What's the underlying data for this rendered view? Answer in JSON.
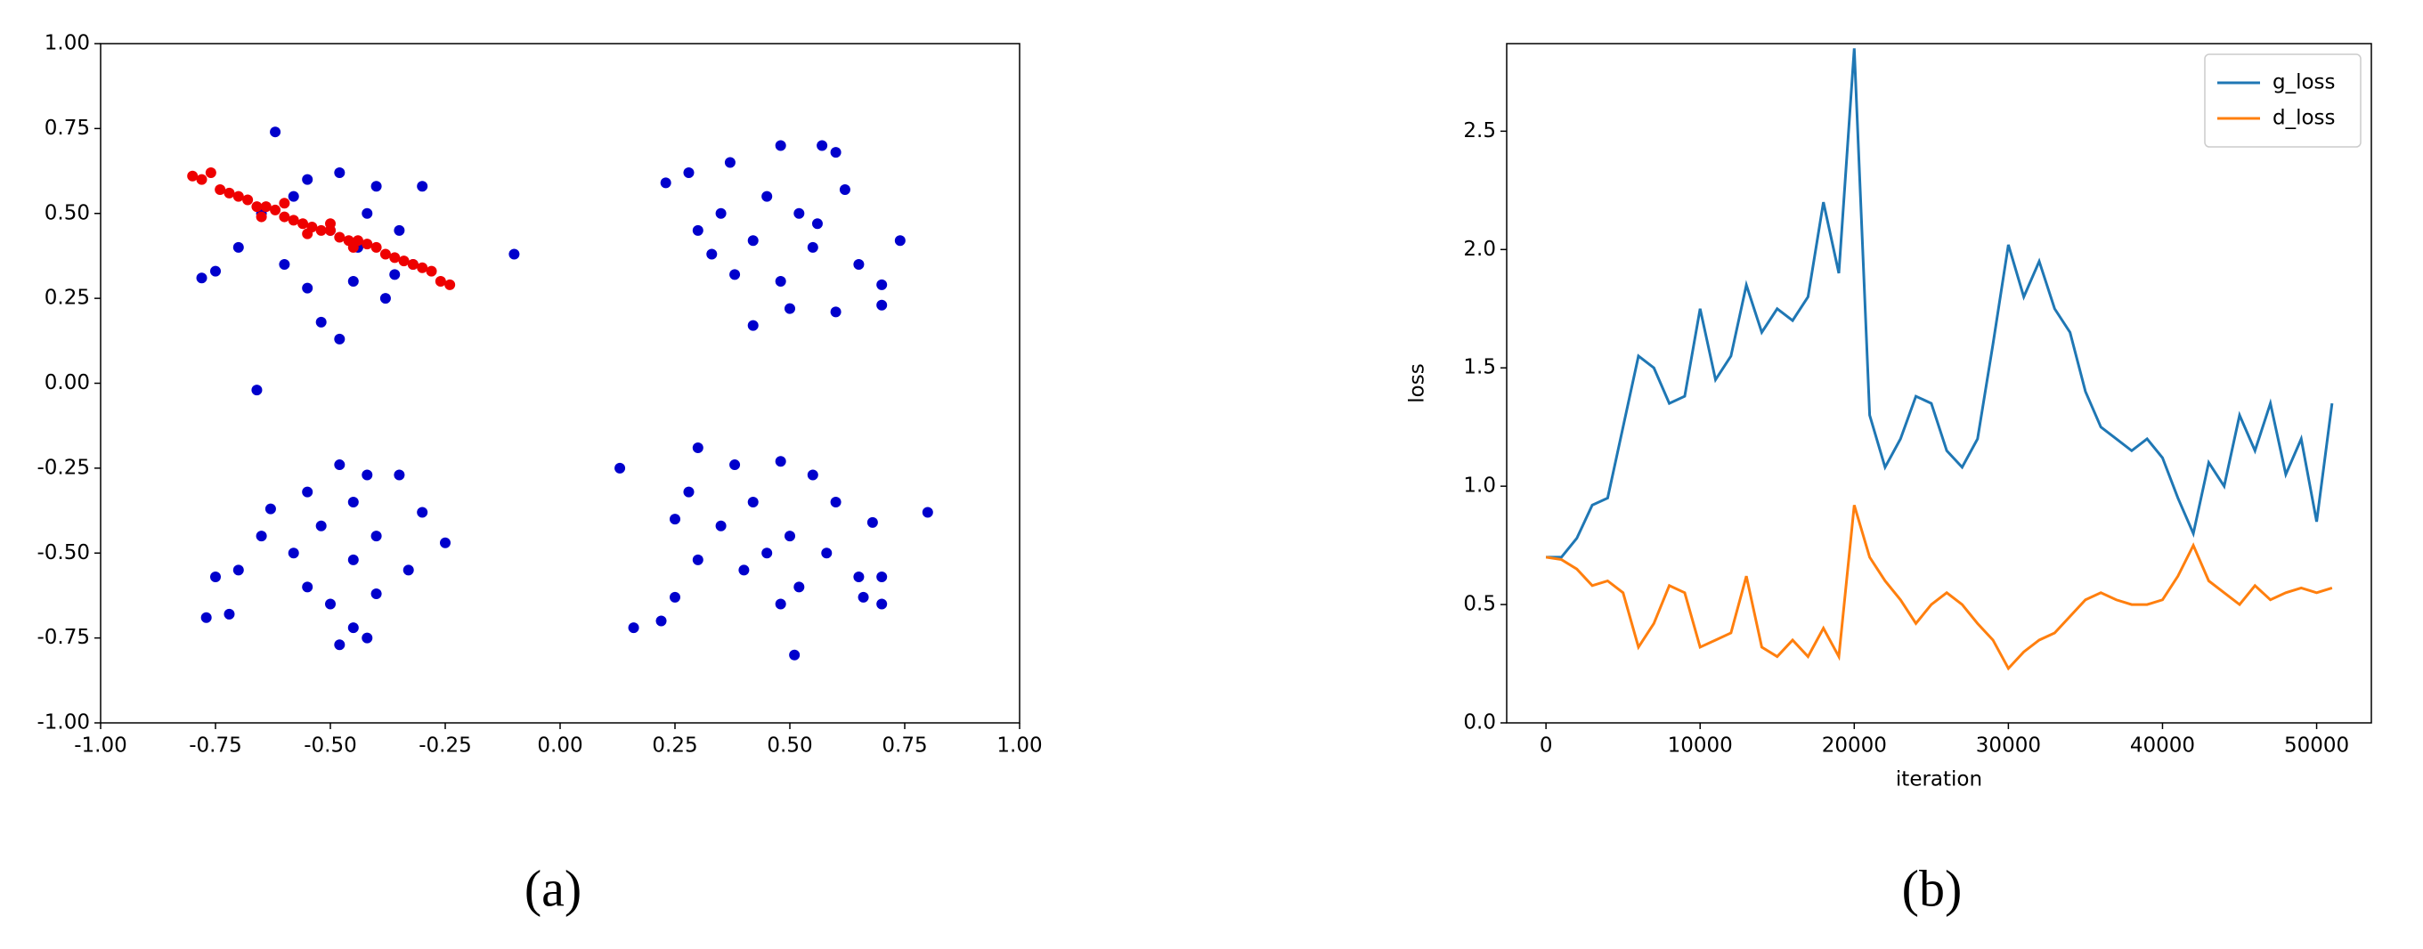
{
  "chart_data": [
    {
      "type": "scatter",
      "panel_label": "(a)",
      "xlim": [
        -1,
        1
      ],
      "ylim": [
        -1,
        1
      ],
      "xticks": [
        {
          "value": -1,
          "label": "-1.00"
        },
        {
          "value": -0.75,
          "label": "-0.75"
        },
        {
          "value": -0.5,
          "label": "-0.50"
        },
        {
          "value": -0.25,
          "label": "-0.25"
        },
        {
          "value": 0,
          "label": "0.00"
        },
        {
          "value": 0.25,
          "label": "0.25"
        },
        {
          "value": 0.5,
          "label": "0.50"
        },
        {
          "value": 0.75,
          "label": "0.75"
        },
        {
          "value": 1,
          "label": "1.00"
        }
      ],
      "yticks": [
        {
          "value": -1,
          "label": "-1.00"
        },
        {
          "value": -0.75,
          "label": "-0.75"
        },
        {
          "value": -0.5,
          "label": "-0.50"
        },
        {
          "value": -0.25,
          "label": "-0.25"
        },
        {
          "value": 0,
          "label": "0.00"
        },
        {
          "value": 0.25,
          "label": "0.25"
        },
        {
          "value": 0.5,
          "label": "0.50"
        },
        {
          "value": 0.75,
          "label": "0.75"
        },
        {
          "value": 1,
          "label": "1.00"
        }
      ],
      "series": [
        {
          "color": "#0000cc",
          "x": [
            -0.62,
            -0.55,
            -0.48,
            -0.4,
            -0.3,
            -0.65,
            -0.5,
            -0.42,
            -0.35,
            -0.7,
            -0.6,
            -0.45,
            -0.38,
            -0.55,
            -0.75,
            -0.78,
            -0.52,
            -0.48,
            -0.1,
            -0.66,
            -0.32,
            -0.58,
            -0.44,
            -0.36,
            0.28,
            0.37,
            0.48,
            0.57,
            0.6,
            0.23,
            0.45,
            0.52,
            0.35,
            0.62,
            0.3,
            0.42,
            0.55,
            0.74,
            0.65,
            0.38,
            0.48,
            0.7,
            0.5,
            0.42,
            0.6,
            0.7,
            0.33,
            0.56,
            -0.48,
            -0.42,
            -0.35,
            -0.55,
            -0.63,
            -0.45,
            -0.3,
            -0.52,
            -0.4,
            -0.65,
            -0.25,
            -0.58,
            -0.45,
            -0.33,
            -0.7,
            -0.75,
            -0.55,
            -0.4,
            -0.5,
            -0.72,
            -0.77,
            -0.45,
            -0.48,
            -0.42,
            0.3,
            0.38,
            0.48,
            0.13,
            0.55,
            0.28,
            0.42,
            0.6,
            0.25,
            0.35,
            0.5,
            0.68,
            0.8,
            0.45,
            0.58,
            0.3,
            0.4,
            0.65,
            0.52,
            0.7,
            0.25,
            0.66,
            0.48,
            0.16,
            0.22,
            0.51,
            0.7
          ],
          "values": [
            0.74,
            0.6,
            0.62,
            0.58,
            0.58,
            0.5,
            0.45,
            0.5,
            0.45,
            0.4,
            0.35,
            0.3,
            0.25,
            0.28,
            0.33,
            0.31,
            0.18,
            0.13,
            0.38,
            -0.02,
            0.35,
            0.55,
            0.4,
            0.32,
            0.62,
            0.65,
            0.7,
            0.7,
            0.68,
            0.59,
            0.55,
            0.5,
            0.5,
            0.57,
            0.45,
            0.42,
            0.4,
            0.42,
            0.35,
            0.32,
            0.3,
            0.29,
            0.22,
            0.17,
            0.21,
            0.23,
            0.38,
            0.47,
            -0.24,
            -0.27,
            -0.27,
            -0.32,
            -0.37,
            -0.35,
            -0.38,
            -0.42,
            -0.45,
            -0.45,
            -0.47,
            -0.5,
            -0.52,
            -0.55,
            -0.55,
            -0.57,
            -0.6,
            -0.62,
            -0.65,
            -0.68,
            -0.69,
            -0.72,
            -0.77,
            -0.75,
            -0.19,
            -0.24,
            -0.23,
            -0.25,
            -0.27,
            -0.32,
            -0.35,
            -0.35,
            -0.4,
            -0.42,
            -0.45,
            -0.41,
            -0.38,
            -0.5,
            -0.5,
            -0.52,
            -0.55,
            -0.57,
            -0.6,
            -0.57,
            -0.63,
            -0.63,
            -0.65,
            -0.72,
            -0.7,
            -0.8,
            -0.65
          ]
        },
        {
          "color": "#ee0000",
          "x": [
            -0.8,
            -0.78,
            -0.76,
            -0.74,
            -0.72,
            -0.7,
            -0.68,
            -0.66,
            -0.64,
            -0.62,
            -0.6,
            -0.58,
            -0.56,
            -0.54,
            -0.52,
            -0.5,
            -0.48,
            -0.46,
            -0.44,
            -0.42,
            -0.4,
            -0.38,
            -0.36,
            -0.34,
            -0.32,
            -0.3,
            -0.28,
            -0.26,
            -0.24,
            -0.65,
            -0.6,
            -0.55,
            -0.5,
            -0.45
          ],
          "values": [
            0.61,
            0.6,
            0.62,
            0.57,
            0.56,
            0.55,
            0.54,
            0.52,
            0.52,
            0.51,
            0.49,
            0.48,
            0.47,
            0.46,
            0.45,
            0.45,
            0.43,
            0.42,
            0.42,
            0.41,
            0.4,
            0.38,
            0.37,
            0.36,
            0.35,
            0.34,
            0.33,
            0.3,
            0.29,
            0.49,
            0.53,
            0.44,
            0.47,
            0.4
          ]
        }
      ]
    },
    {
      "type": "line",
      "panel_label": "(b)",
      "xlabel": "iteration",
      "ylabel": "loss",
      "xlim": [
        -2550,
        53550
      ],
      "ylim": [
        0,
        2.87
      ],
      "xticks": [
        0,
        10000,
        20000,
        30000,
        40000,
        50000
      ],
      "yticks": [
        {
          "value": 0,
          "label": "0.0"
        },
        0.5,
        {
          "value": 1,
          "label": "1.0"
        },
        1.5,
        {
          "value": 2,
          "label": "2.0"
        },
        2.5
      ],
      "legend": "upper right",
      "x": [
        0,
        1000,
        2000,
        3000,
        4000,
        5000,
        6000,
        7000,
        8000,
        9000,
        10000,
        11000,
        12000,
        13000,
        14000,
        15000,
        16000,
        17000,
        18000,
        19000,
        20000,
        21000,
        22000,
        23000,
        24000,
        25000,
        26000,
        27000,
        28000,
        29000,
        30000,
        31000,
        32000,
        33000,
        34000,
        35000,
        36000,
        37000,
        38000,
        39000,
        40000,
        41000,
        42000,
        43000,
        44000,
        45000,
        46000,
        47000,
        48000,
        49000,
        50000,
        51000
      ],
      "series": [
        {
          "name": "g_loss",
          "color": "#1f77b4",
          "values": [
            0.7,
            0.7,
            0.78,
            0.92,
            0.95,
            1.25,
            1.55,
            1.5,
            1.35,
            1.38,
            1.75,
            1.45,
            1.55,
            1.85,
            1.65,
            1.75,
            1.7,
            1.8,
            2.2,
            1.9,
            2.85,
            1.3,
            1.08,
            1.2,
            1.38,
            1.35,
            1.15,
            1.08,
            1.2,
            1.6,
            2.02,
            1.8,
            1.95,
            1.75,
            1.65,
            1.4,
            1.25,
            1.2,
            1.15,
            1.2,
            1.12,
            0.95,
            0.8,
            1.1,
            1.0,
            1.3,
            1.15,
            1.35,
            1.05,
            1.2,
            0.85,
            1.35
          ]
        },
        {
          "name": "d_loss",
          "color": "#ff7f0e",
          "values": [
            0.7,
            0.69,
            0.65,
            0.58,
            0.6,
            0.55,
            0.32,
            0.42,
            0.58,
            0.55,
            0.32,
            0.35,
            0.38,
            0.62,
            0.32,
            0.28,
            0.35,
            0.28,
            0.4,
            0.28,
            0.92,
            0.7,
            0.6,
            0.52,
            0.42,
            0.5,
            0.55,
            0.5,
            0.42,
            0.35,
            0.23,
            0.3,
            0.35,
            0.38,
            0.45,
            0.52,
            0.55,
            0.52,
            0.5,
            0.5,
            0.52,
            0.62,
            0.75,
            0.6,
            0.55,
            0.5,
            0.58,
            0.52,
            0.55,
            0.57,
            0.55,
            0.57
          ]
        }
      ]
    }
  ]
}
